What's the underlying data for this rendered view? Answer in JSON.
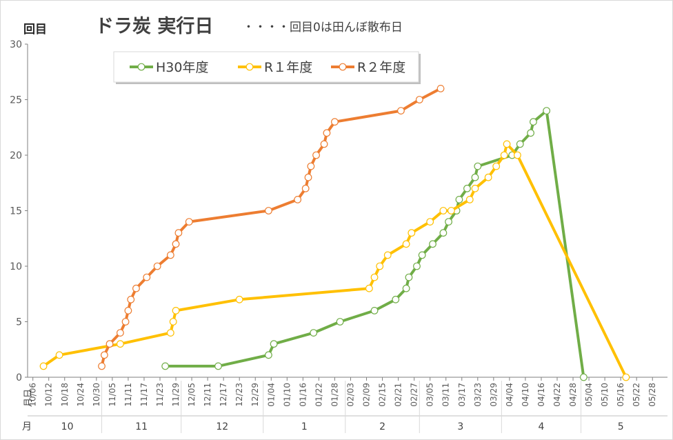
{
  "window": {
    "border_color": "#bfbfbf"
  },
  "title": {
    "main": "ドラ炭 実行日",
    "sub": "・・・・回目0は田んぼ散布日"
  },
  "y_axis_label": "回目",
  "x_axis_day_label": "月日",
  "x_axis_month_label": "月",
  "legend_position": "top-left",
  "chart_data": {
    "type": "line",
    "title": "ドラ炭 実行日",
    "subtitle": "・・・・回目0は田んぼ散布日",
    "ylabel": "回目",
    "xlabel": "月日",
    "ylim": [
      0,
      30
    ],
    "y_ticks": [
      0,
      5,
      10,
      15,
      20,
      25,
      30
    ],
    "x_tick_labels": [
      "10/06",
      "10/12",
      "10/18",
      "10/24",
      "10/30",
      "11/05",
      "11/11",
      "11/17",
      "11/23",
      "11/29",
      "12/05",
      "12/11",
      "12/17",
      "12/23",
      "12/29",
      "01/04",
      "01/10",
      "01/16",
      "01/22",
      "01/28",
      "02/03",
      "02/09",
      "02/15",
      "02/21",
      "02/27",
      "03/05",
      "03/11",
      "03/17",
      "03/23",
      "03/29",
      "04/04",
      "04/10",
      "04/16",
      "04/22",
      "04/28",
      "05/04",
      "05/10",
      "05/16",
      "05/22",
      "05/28"
    ],
    "month_groups": [
      {
        "label": "10",
        "start": "10/06",
        "end": "11/01"
      },
      {
        "label": "11",
        "start": "11/01",
        "end": "12/01"
      },
      {
        "label": "12",
        "start": "12/01",
        "end": "01/01"
      },
      {
        "label": "1",
        "start": "01/01",
        "end": "02/01"
      },
      {
        "label": "2",
        "start": "02/01",
        "end": "03/01"
      },
      {
        "label": "3",
        "start": "03/01",
        "end": "04/01"
      },
      {
        "label": "4",
        "start": "04/01",
        "end": "05/01"
      },
      {
        "label": "5",
        "start": "05/01",
        "end": "05/31"
      }
    ],
    "grid": false,
    "series": [
      {
        "name": "H30年度",
        "color": "#70ad47",
        "points": [
          [
            "11/25",
            1
          ],
          [
            "12/15",
            1
          ],
          [
            "01/03",
            2
          ],
          [
            "01/05",
            3
          ],
          [
            "01/20",
            4
          ],
          [
            "01/30",
            5
          ],
          [
            "02/12",
            6
          ],
          [
            "02/20",
            7
          ],
          [
            "02/24",
            8
          ],
          [
            "02/25",
            9
          ],
          [
            "02/28",
            10
          ],
          [
            "03/02",
            11
          ],
          [
            "03/06",
            12
          ],
          [
            "03/10",
            13
          ],
          [
            "03/12",
            14
          ],
          [
            "03/15",
            15
          ],
          [
            "03/16",
            16
          ],
          [
            "03/19",
            17
          ],
          [
            "03/22",
            18
          ],
          [
            "03/23",
            19
          ],
          [
            "04/05",
            20
          ],
          [
            "04/08",
            21
          ],
          [
            "04/12",
            22
          ],
          [
            "04/13",
            23
          ],
          [
            "04/18",
            24
          ],
          [
            "05/02",
            0
          ]
        ]
      },
      {
        "name": "R１年度",
        "color": "#ffc000",
        "points": [
          [
            "10/10",
            1
          ],
          [
            "10/16",
            2
          ],
          [
            "11/08",
            3
          ],
          [
            "11/27",
            4
          ],
          [
            "11/28",
            5
          ],
          [
            "11/29",
            6
          ],
          [
            "12/23",
            7
          ],
          [
            "02/10",
            8
          ],
          [
            "02/12",
            9
          ],
          [
            "02/14",
            10
          ],
          [
            "02/17",
            11
          ],
          [
            "02/24",
            12
          ],
          [
            "02/26",
            13
          ],
          [
            "03/05",
            14
          ],
          [
            "03/10",
            15
          ],
          [
            "03/13",
            15
          ],
          [
            "03/20",
            16
          ],
          [
            "03/22",
            17
          ],
          [
            "03/27",
            18
          ],
          [
            "03/30",
            19
          ],
          [
            "04/02",
            20
          ],
          [
            "04/03",
            21
          ],
          [
            "04/07",
            20
          ],
          [
            "05/18",
            0
          ]
        ]
      },
      {
        "name": "R２年度",
        "color": "#ed7d31",
        "points": [
          [
            "11/01",
            1
          ],
          [
            "11/02",
            2
          ],
          [
            "11/04",
            3
          ],
          [
            "11/08",
            4
          ],
          [
            "11/10",
            5
          ],
          [
            "11/11",
            6
          ],
          [
            "11/12",
            7
          ],
          [
            "11/14",
            8
          ],
          [
            "11/18",
            9
          ],
          [
            "11/22",
            10
          ],
          [
            "11/27",
            11
          ],
          [
            "11/29",
            12
          ],
          [
            "11/30",
            13
          ],
          [
            "12/04",
            14
          ],
          [
            "01/03",
            15
          ],
          [
            "01/14",
            16
          ],
          [
            "01/17",
            17
          ],
          [
            "01/18",
            18
          ],
          [
            "01/19",
            19
          ],
          [
            "01/21",
            20
          ],
          [
            "01/24",
            21
          ],
          [
            "01/25",
            22
          ],
          [
            "01/28",
            23
          ],
          [
            "02/22",
            24
          ],
          [
            "03/01",
            25
          ],
          [
            "03/09",
            26
          ]
        ]
      }
    ]
  }
}
